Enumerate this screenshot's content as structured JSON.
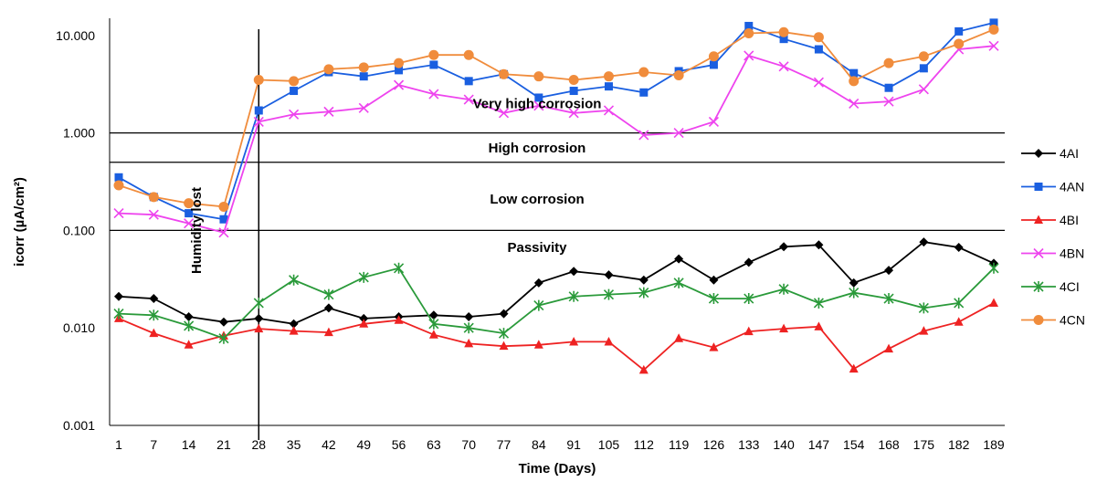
{
  "chart_data": {
    "type": "line",
    "title": "",
    "xlabel": "Time (Days)",
    "ylabel": "icorr (µA/cm²)",
    "y_scale": "log",
    "ylim": [
      0.001,
      15
    ],
    "y_ticks": [
      {
        "value": 0.001,
        "label": "0.001"
      },
      {
        "value": 0.01,
        "label": "0.010"
      },
      {
        "value": 0.1,
        "label": "0.100"
      },
      {
        "value": 1,
        "label": "1.000"
      },
      {
        "value": 10,
        "label": "10.000"
      }
    ],
    "grid": false,
    "legend_position": "right",
    "categories": [
      "1",
      "7",
      "14",
      "21",
      "28",
      "35",
      "42",
      "49",
      "56",
      "63",
      "70",
      "77",
      "84",
      "91",
      "105",
      "112",
      "119",
      "126",
      "133",
      "140",
      "147",
      "154",
      "168",
      "175",
      "182",
      "189"
    ],
    "series": [
      {
        "name": "4AI",
        "color": "#000000",
        "marker": "diamond",
        "values": [
          0.021,
          0.02,
          0.013,
          0.0115,
          0.0125,
          0.011,
          0.016,
          0.0125,
          0.013,
          0.0135,
          0.013,
          0.014,
          0.029,
          0.038,
          0.035,
          0.031,
          0.051,
          0.031,
          0.047,
          0.068,
          0.071,
          0.029,
          0.039,
          0.076,
          0.067,
          0.046
        ]
      },
      {
        "name": "4AN",
        "color": "#1a5fe0",
        "marker": "square",
        "values": [
          0.35,
          0.22,
          0.15,
          0.13,
          1.7,
          2.7,
          4.2,
          3.8,
          4.4,
          5.0,
          3.4,
          4.0,
          2.3,
          2.7,
          3.0,
          2.6,
          4.3,
          5.0,
          12.5,
          9.2,
          7.2,
          4.1,
          2.9,
          4.6,
          11.0,
          13.5
        ]
      },
      {
        "name": "4BI",
        "color": "#ee2222",
        "marker": "triangle",
        "values": [
          0.0125,
          0.0088,
          0.0067,
          0.0083,
          0.0098,
          0.0093,
          0.009,
          0.011,
          0.012,
          0.0085,
          0.0069,
          0.0065,
          0.0067,
          0.0072,
          0.0072,
          0.0037,
          0.0078,
          0.0063,
          0.0092,
          0.0098,
          0.0103,
          0.0038,
          0.0061,
          0.0093,
          0.0115,
          0.018
        ]
      },
      {
        "name": "4BN",
        "color": "#ee44ee",
        "marker": "x",
        "values": [
          0.15,
          0.145,
          0.118,
          0.095,
          1.3,
          1.55,
          1.65,
          1.8,
          3.1,
          2.5,
          2.2,
          1.6,
          1.9,
          1.6,
          1.7,
          0.95,
          1.0,
          1.3,
          6.2,
          4.8,
          3.3,
          2.0,
          2.1,
          2.8,
          7.2,
          7.8
        ]
      },
      {
        "name": "4CI",
        "color": "#2a9a3a",
        "marker": "star",
        "values": [
          0.014,
          0.0135,
          0.0105,
          0.0078,
          0.018,
          0.031,
          0.022,
          0.033,
          0.041,
          0.011,
          0.01,
          0.0088,
          0.017,
          0.021,
          0.022,
          0.023,
          0.029,
          0.02,
          0.02,
          0.025,
          0.018,
          0.023,
          0.02,
          0.016,
          0.018,
          0.041
        ]
      },
      {
        "name": "4CN",
        "color": "#f08c3c",
        "marker": "circle",
        "values": [
          0.29,
          0.22,
          0.19,
          0.175,
          3.5,
          3.4,
          4.5,
          4.7,
          5.2,
          6.3,
          6.3,
          4.0,
          3.8,
          3.5,
          3.8,
          4.2,
          3.9,
          6.1,
          10.5,
          10.8,
          9.6,
          3.4,
          5.2,
          6.1,
          8.2,
          11.5
        ]
      }
    ],
    "threshold_lines": [
      0.1,
      0.5,
      1.0
    ],
    "vertical_marker_category": "28",
    "zone_labels": [
      {
        "text": "Very high corrosion",
        "value": 2.0
      },
      {
        "text": "High corrosion",
        "value": 0.7
      },
      {
        "text": "Low corrosion",
        "value": 0.21
      },
      {
        "text": "Passivity",
        "value": 0.067
      }
    ],
    "annotation": {
      "text": "Humidity lost",
      "category_between": [
        "14",
        "21"
      ]
    }
  }
}
